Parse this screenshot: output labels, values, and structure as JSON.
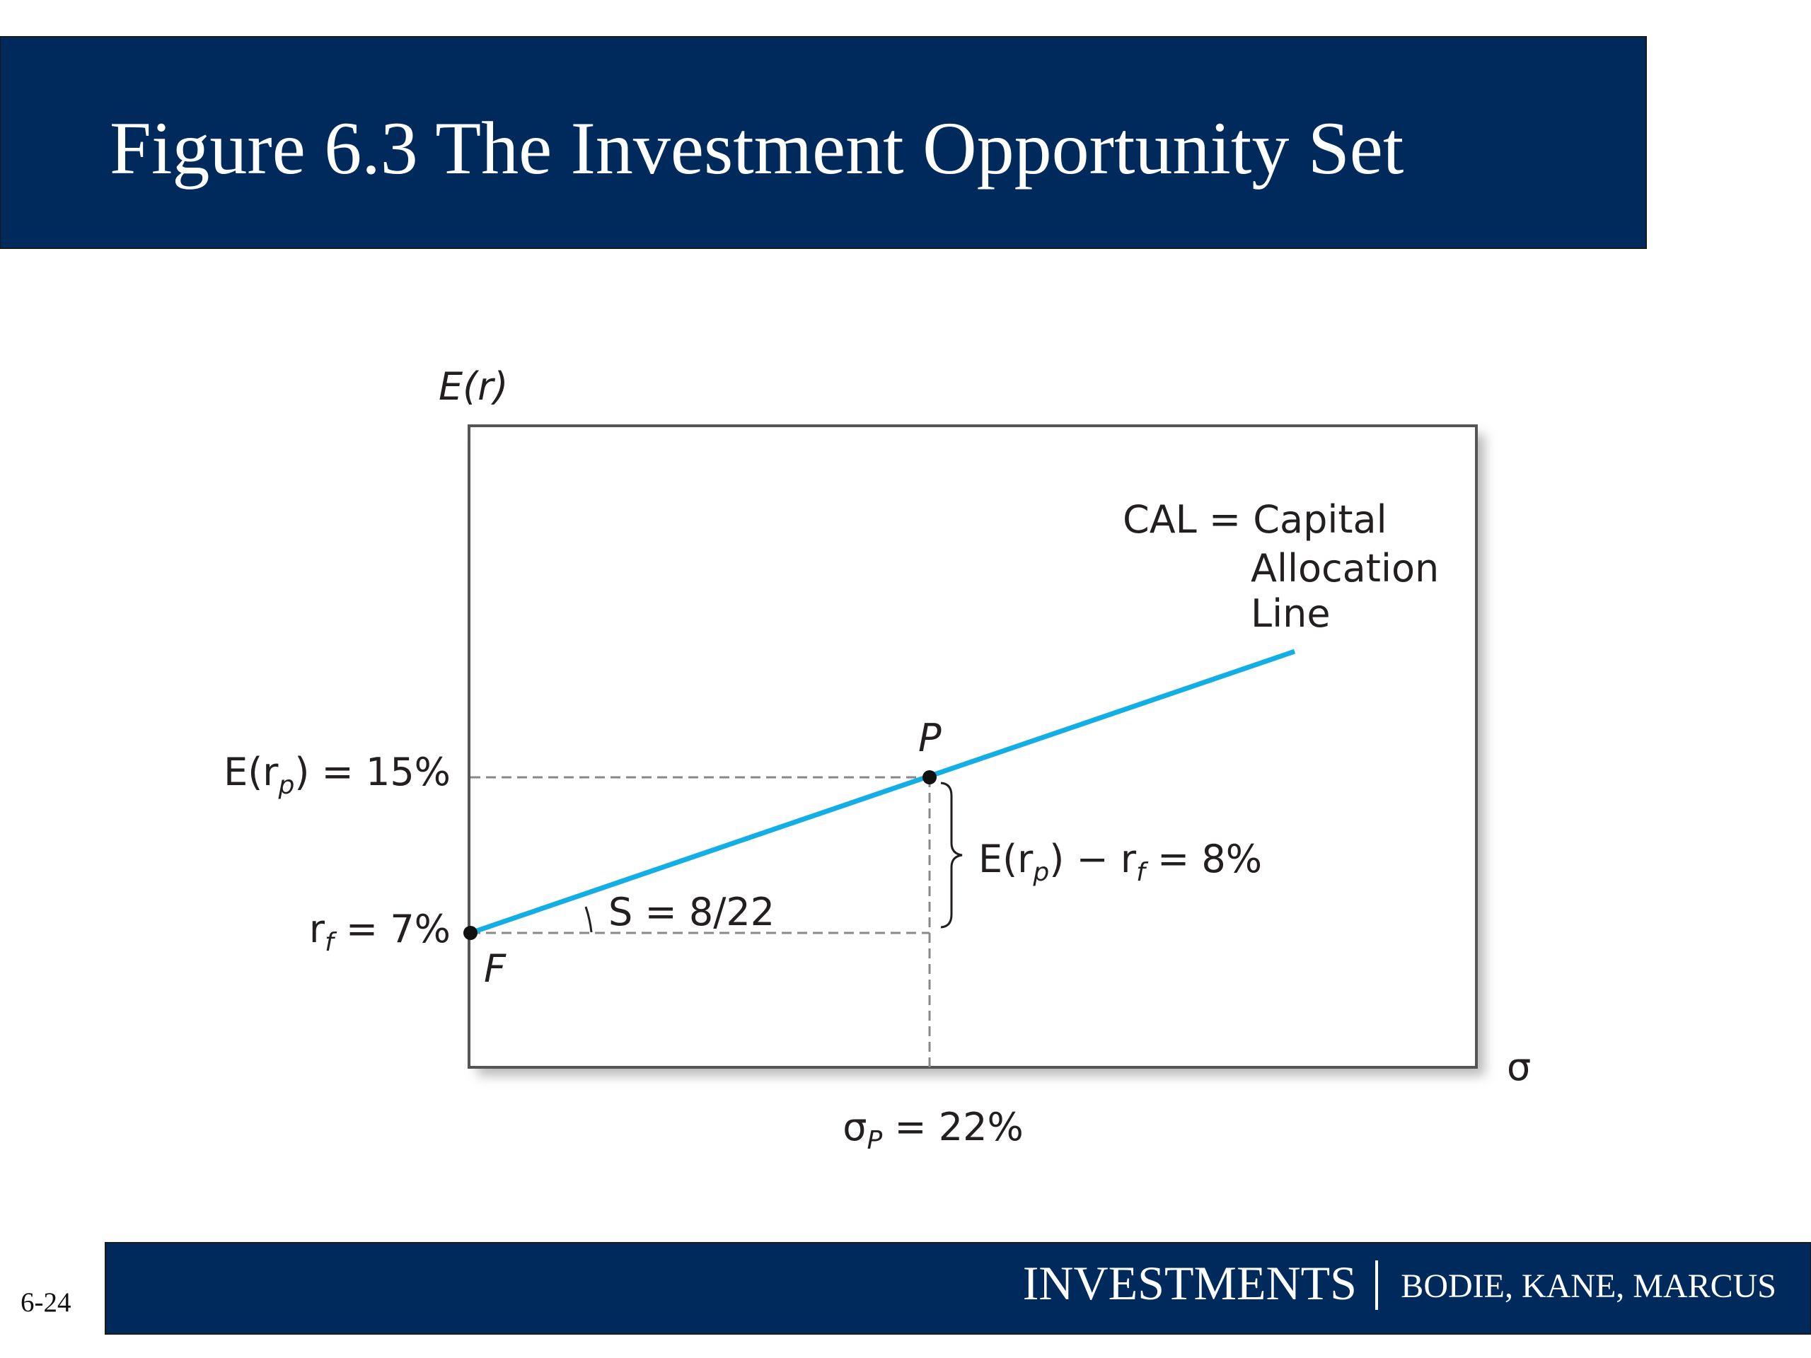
{
  "title": "Figure 6.3 The Investment Opportunity Set",
  "figure": {
    "y_axis_label": "E(r)",
    "x_axis_label": "σ",
    "point_f": "F",
    "point_p": "P",
    "cal_label": [
      "CAL = Capital",
      "Allocation",
      "Line"
    ],
    "expected_return_label": [
      "E(r",
      "p",
      ") = 15%"
    ],
    "risk_free_label": [
      "r",
      "f",
      " = 7%"
    ],
    "slope_label": "S = 8/22",
    "risk_premium_label": [
      "E(r",
      "p",
      ") − r",
      "f",
      " = 8%"
    ],
    "sigma_p_label": [
      "σ",
      "P",
      " = 22%"
    ]
  },
  "footer": {
    "book": "INVESTMENTS",
    "authors": "BODIE, KANE, MARCUS",
    "page": "6-24"
  }
}
